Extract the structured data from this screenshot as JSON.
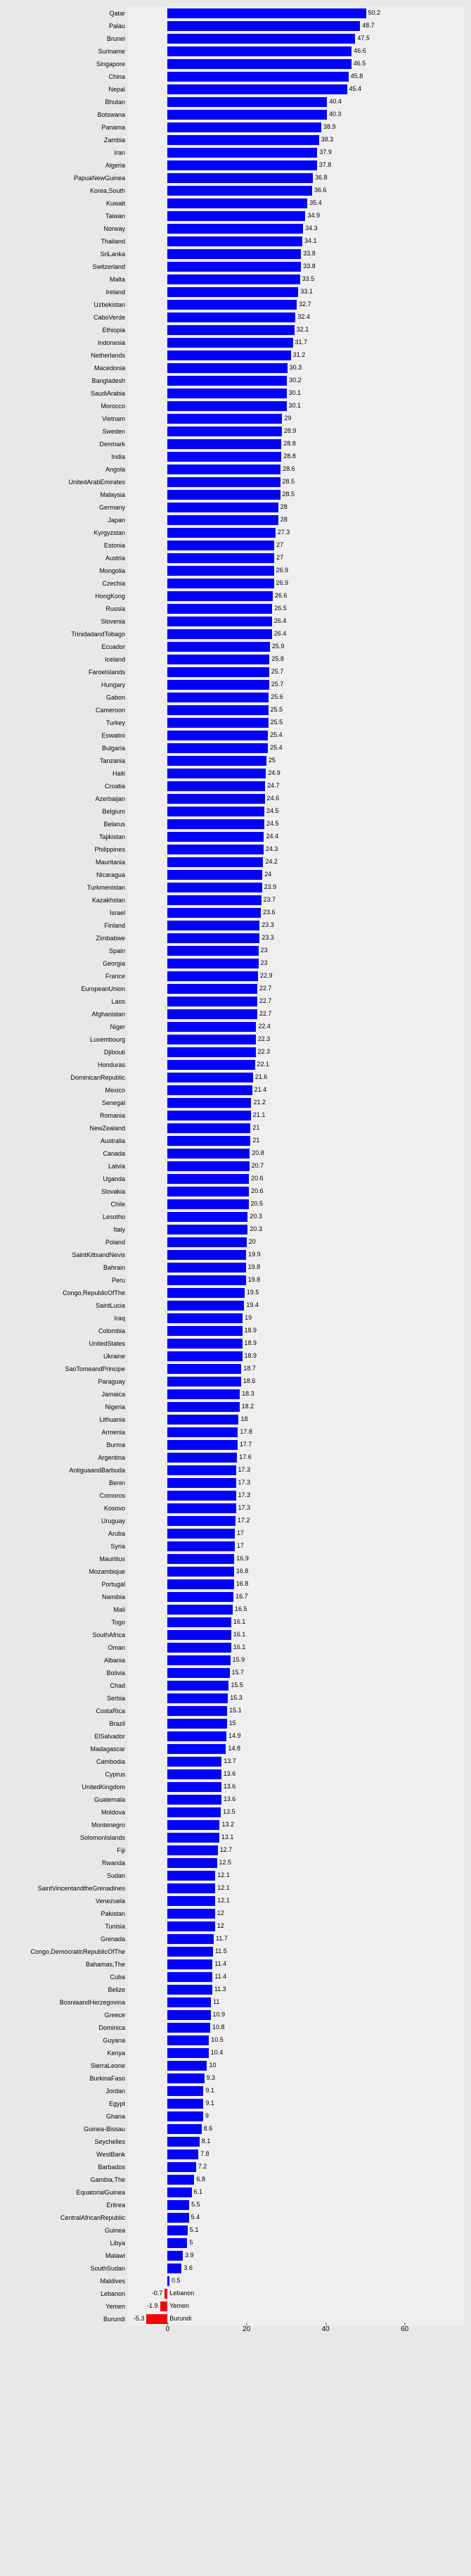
{
  "chart": {
    "type": "bar-horizontal",
    "background_color": "#e8e8e8",
    "plot_background_color": "#efefef",
    "bar_color_positive": "#0000fe",
    "bar_color_negative": "#fe0000",
    "label_fontsize": 9,
    "value_fontsize": 9,
    "xmin": -10,
    "xmax": 75,
    "xtick_values": [
      0,
      20,
      40,
      60
    ],
    "data": [
      {
        "label": "Qatar",
        "value": 50.2
      },
      {
        "label": "Palau",
        "value": 48.7
      },
      {
        "label": "Brunei",
        "value": 47.5
      },
      {
        "label": "Suriname",
        "value": 46.6
      },
      {
        "label": "Singapore",
        "value": 46.5
      },
      {
        "label": "China",
        "value": 45.8
      },
      {
        "label": "Nepal",
        "value": 45.4
      },
      {
        "label": "Bhutan",
        "value": 40.4
      },
      {
        "label": "Botswana",
        "value": 40.3
      },
      {
        "label": "Panama",
        "value": 38.9
      },
      {
        "label": "Zambia",
        "value": 38.3
      },
      {
        "label": "Iran",
        "value": 37.9
      },
      {
        "label": "Algeria",
        "value": 37.8
      },
      {
        "label": "PapuaNewGuinea",
        "value": 36.8
      },
      {
        "label": "Korea,South",
        "value": 36.6
      },
      {
        "label": "Kuwait",
        "value": 35.4
      },
      {
        "label": "Taiwan",
        "value": 34.9
      },
      {
        "label": "Norway",
        "value": 34.3
      },
      {
        "label": "Thailand",
        "value": 34.1
      },
      {
        "label": "SriLanka",
        "value": 33.8
      },
      {
        "label": "Switzerland",
        "value": 33.8
      },
      {
        "label": "Malta",
        "value": 33.5
      },
      {
        "label": "Ireland",
        "value": 33.1
      },
      {
        "label": "Uzbekistan",
        "value": 32.7
      },
      {
        "label": "CaboVerde",
        "value": 32.4
      },
      {
        "label": "Ethiopia",
        "value": 32.1
      },
      {
        "label": "Indonesia",
        "value": 31.7
      },
      {
        "label": "Netherlands",
        "value": 31.2
      },
      {
        "label": "Macedonia",
        "value": 30.3
      },
      {
        "label": "Bangladesh",
        "value": 30.2
      },
      {
        "label": "SaudiArabia",
        "value": 30.1
      },
      {
        "label": "Morocco",
        "value": 30.1
      },
      {
        "label": "Vietnam",
        "value": 29
      },
      {
        "label": "Sweden",
        "value": 28.9
      },
      {
        "label": "Denmark",
        "value": 28.8
      },
      {
        "label": "India",
        "value": 28.8
      },
      {
        "label": "Angola",
        "value": 28.6
      },
      {
        "label": "UnitedArabEmirates",
        "value": 28.5
      },
      {
        "label": "Malaysia",
        "value": 28.5
      },
      {
        "label": "Germany",
        "value": 28
      },
      {
        "label": "Japan",
        "value": 28
      },
      {
        "label": "Kyrgyzstan",
        "value": 27.3
      },
      {
        "label": "Estonia",
        "value": 27
      },
      {
        "label": "Austria",
        "value": 27
      },
      {
        "label": "Mongolia",
        "value": 26.9
      },
      {
        "label": "Czechia",
        "value": 26.9
      },
      {
        "label": "HongKong",
        "value": 26.6
      },
      {
        "label": "Russia",
        "value": 26.5
      },
      {
        "label": "Slovenia",
        "value": 26.4
      },
      {
        "label": "TrinidadandTobago",
        "value": 26.4
      },
      {
        "label": "Ecuador",
        "value": 25.9
      },
      {
        "label": "Iceland",
        "value": 25.8
      },
      {
        "label": "FaroeIslands",
        "value": 25.7
      },
      {
        "label": "Hungary",
        "value": 25.7
      },
      {
        "label": "Gabon",
        "value": 25.6
      },
      {
        "label": "Cameroon",
        "value": 25.5
      },
      {
        "label": "Turkey",
        "value": 25.5
      },
      {
        "label": "Eswatini",
        "value": 25.4
      },
      {
        "label": "Bulgaria",
        "value": 25.4
      },
      {
        "label": "Tanzania",
        "value": 25
      },
      {
        "label": "Haiti",
        "value": 24.9
      },
      {
        "label": "Croatia",
        "value": 24.7
      },
      {
        "label": "Azerbaijan",
        "value": 24.6
      },
      {
        "label": "Belgium",
        "value": 24.5
      },
      {
        "label": "Belarus",
        "value": 24.5
      },
      {
        "label": "Tajikistan",
        "value": 24.4
      },
      {
        "label": "Philippines",
        "value": 24.3
      },
      {
        "label": "Mauritania",
        "value": 24.2
      },
      {
        "label": "Nicaragua",
        "value": 24
      },
      {
        "label": "Turkmenistan",
        "value": 23.9
      },
      {
        "label": "Kazakhstan",
        "value": 23.7
      },
      {
        "label": "Israel",
        "value": 23.6
      },
      {
        "label": "Finland",
        "value": 23.3
      },
      {
        "label": "Zimbabwe",
        "value": 23.3
      },
      {
        "label": "Spain",
        "value": 23
      },
      {
        "label": "Georgia",
        "value": 23
      },
      {
        "label": "France",
        "value": 22.9
      },
      {
        "label": "EuropeanUnion",
        "value": 22.7
      },
      {
        "label": "Laos",
        "value": 22.7
      },
      {
        "label": "Afghanistan",
        "value": 22.7
      },
      {
        "label": "Niger",
        "value": 22.4
      },
      {
        "label": "Luxembourg",
        "value": 22.3
      },
      {
        "label": "Djibouti",
        "value": 22.3
      },
      {
        "label": "Honduras",
        "value": 22.1
      },
      {
        "label": "DominicanRepublic",
        "value": 21.6
      },
      {
        "label": "Mexico",
        "value": 21.4
      },
      {
        "label": "Senegal",
        "value": 21.2
      },
      {
        "label": "Romania",
        "value": 21.1
      },
      {
        "label": "NewZealand",
        "value": 21
      },
      {
        "label": "Australia",
        "value": 21
      },
      {
        "label": "Canada",
        "value": 20.8
      },
      {
        "label": "Latvia",
        "value": 20.7
      },
      {
        "label": "Uganda",
        "value": 20.6
      },
      {
        "label": "Slovakia",
        "value": 20.6
      },
      {
        "label": "Chile",
        "value": 20.5
      },
      {
        "label": "Lesotho",
        "value": 20.3
      },
      {
        "label": "Italy",
        "value": 20.3
      },
      {
        "label": "Poland",
        "value": 20
      },
      {
        "label": "SaintKittsandNevis",
        "value": 19.9
      },
      {
        "label": "Bahrain",
        "value": 19.8
      },
      {
        "label": "Peru",
        "value": 19.8
      },
      {
        "label": "Congo,RepublicOfThe",
        "value": 19.5
      },
      {
        "label": "SaintLucia",
        "value": 19.4
      },
      {
        "label": "Iraq",
        "value": 19
      },
      {
        "label": "Colombia",
        "value": 18.9
      },
      {
        "label": "UnitedStates",
        "value": 18.9
      },
      {
        "label": "Ukraine",
        "value": 18.9
      },
      {
        "label": "SaoTomeandPrincipe",
        "value": 18.7
      },
      {
        "label": "Paraguay",
        "value": 18.6
      },
      {
        "label": "Jamaica",
        "value": 18.3
      },
      {
        "label": "Nigeria",
        "value": 18.2
      },
      {
        "label": "Lithuania",
        "value": 18
      },
      {
        "label": "Armenia",
        "value": 17.8
      },
      {
        "label": "Burma",
        "value": 17.7
      },
      {
        "label": "Argentina",
        "value": 17.6
      },
      {
        "label": "AntiguaandBarbuda",
        "value": 17.3
      },
      {
        "label": "Benin",
        "value": 17.3
      },
      {
        "label": "Comoros",
        "value": 17.3
      },
      {
        "label": "Kosovo",
        "value": 17.3
      },
      {
        "label": "Uruguay",
        "value": 17.2
      },
      {
        "label": "Aruba",
        "value": 17
      },
      {
        "label": "Syria",
        "value": 17
      },
      {
        "label": "Mauritius",
        "value": 16.9
      },
      {
        "label": "Mozambique",
        "value": 16.8
      },
      {
        "label": "Portugal",
        "value": 16.8
      },
      {
        "label": "Namibia",
        "value": 16.7
      },
      {
        "label": "Mali",
        "value": 16.5
      },
      {
        "label": "Togo",
        "value": 16.1
      },
      {
        "label": "SouthAfrica",
        "value": 16.1
      },
      {
        "label": "Oman",
        "value": 16.1
      },
      {
        "label": "Albania",
        "value": 15.9
      },
      {
        "label": "Bolivia",
        "value": 15.7
      },
      {
        "label": "Chad",
        "value": 15.5
      },
      {
        "label": "Serbia",
        "value": 15.3
      },
      {
        "label": "CostaRica",
        "value": 15.1
      },
      {
        "label": "Brazil",
        "value": 15
      },
      {
        "label": "ElSalvador",
        "value": 14.9
      },
      {
        "label": "Madagascar",
        "value": 14.8
      },
      {
        "label": "Cambodia",
        "value": 13.7
      },
      {
        "label": "Cyprus",
        "value": 13.6
      },
      {
        "label": "UnitedKingdom",
        "value": 13.6
      },
      {
        "label": "Guatemala",
        "value": 13.6
      },
      {
        "label": "Moldova",
        "value": 13.5
      },
      {
        "label": "Montenegro",
        "value": 13.2
      },
      {
        "label": "SolomonIslands",
        "value": 13.1
      },
      {
        "label": "Fiji",
        "value": 12.7
      },
      {
        "label": "Rwanda",
        "value": 12.5
      },
      {
        "label": "Sudan",
        "value": 12.1
      },
      {
        "label": "SaintVincentandtheGrenadines",
        "value": 12.1
      },
      {
        "label": "Venezuela",
        "value": 12.1
      },
      {
        "label": "Pakistan",
        "value": 12
      },
      {
        "label": "Tunisia",
        "value": 12
      },
      {
        "label": "Grenada",
        "value": 11.7
      },
      {
        "label": "Congo,DemocraticRepublicOfThe",
        "value": 11.5
      },
      {
        "label": "Bahamas,The",
        "value": 11.4
      },
      {
        "label": "Cuba",
        "value": 11.4
      },
      {
        "label": "Belize",
        "value": 11.3
      },
      {
        "label": "BosniaandHerzegovina",
        "value": 11
      },
      {
        "label": "Greece",
        "value": 10.9
      },
      {
        "label": "Dominica",
        "value": 10.8
      },
      {
        "label": "Guyana",
        "value": 10.5
      },
      {
        "label": "Kenya",
        "value": 10.4
      },
      {
        "label": "SierraLeone",
        "value": 10
      },
      {
        "label": "BurkinaFaso",
        "value": 9.3
      },
      {
        "label": "Jordan",
        "value": 9.1
      },
      {
        "label": "Egypt",
        "value": 9.1
      },
      {
        "label": "Ghana",
        "value": 9
      },
      {
        "label": "Guinea-Bissau",
        "value": 8.6
      },
      {
        "label": "Seychelles",
        "value": 8.1
      },
      {
        "label": "WestBank",
        "value": 7.8
      },
      {
        "label": "Barbados",
        "value": 7.2
      },
      {
        "label": "Gambia,The",
        "value": 6.8
      },
      {
        "label": "EquatorialGuinea",
        "value": 6.1
      },
      {
        "label": "Eritrea",
        "value": 5.5
      },
      {
        "label": "CentralAfricanRepublic",
        "value": 5.4
      },
      {
        "label": "Guinea",
        "value": 5.1
      },
      {
        "label": "Libya",
        "value": 5
      },
      {
        "label": "Malawi",
        "value": 3.9
      },
      {
        "label": "SouthSudan",
        "value": 3.6
      },
      {
        "label": "Maldives",
        "value": 0.5
      },
      {
        "label": "Lebanon",
        "value": -0.7
      },
      {
        "label": "Yemen",
        "value": -1.9
      },
      {
        "label": "Burundi",
        "value": -5.3
      }
    ]
  }
}
